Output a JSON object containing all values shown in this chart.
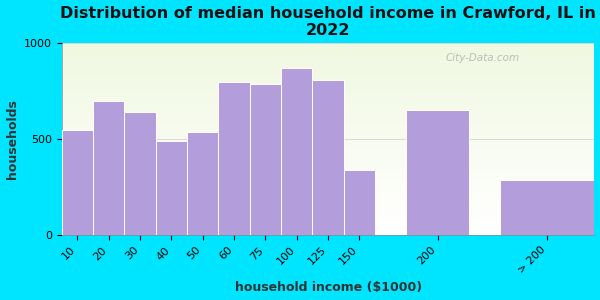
{
  "categories": [
    "10",
    "20",
    "30",
    "40",
    "50",
    "60",
    "75",
    "100",
    "125",
    "150",
    "200",
    "> 200"
  ],
  "values": [
    550,
    700,
    640,
    490,
    540,
    800,
    790,
    870,
    810,
    340,
    650,
    290
  ],
  "bar_left_edges": [
    0,
    1,
    2,
    3,
    4,
    5,
    6,
    7,
    8,
    9,
    11,
    14
  ],
  "bar_widths": [
    1,
    1,
    1,
    1,
    1,
    1,
    1,
    1,
    1,
    1,
    2,
    3
  ],
  "bar_color": "#b39ddb",
  "bar_edge_color": "#ffffff",
  "background_outer": "#00e5ff",
  "background_plot_top": "#e8f5e9",
  "background_plot_bottom": "#f5f5f5",
  "title": "Distribution of median household income in Crawford, IL in\n2022",
  "xlabel": "household income ($1000)",
  "ylabel": "households",
  "ylim": [
    0,
    1000
  ],
  "yticks": [
    0,
    500,
    1000
  ],
  "title_fontsize": 11.5,
  "axis_label_fontsize": 9,
  "tick_fontsize": 8,
  "watermark": "City-Data.com"
}
